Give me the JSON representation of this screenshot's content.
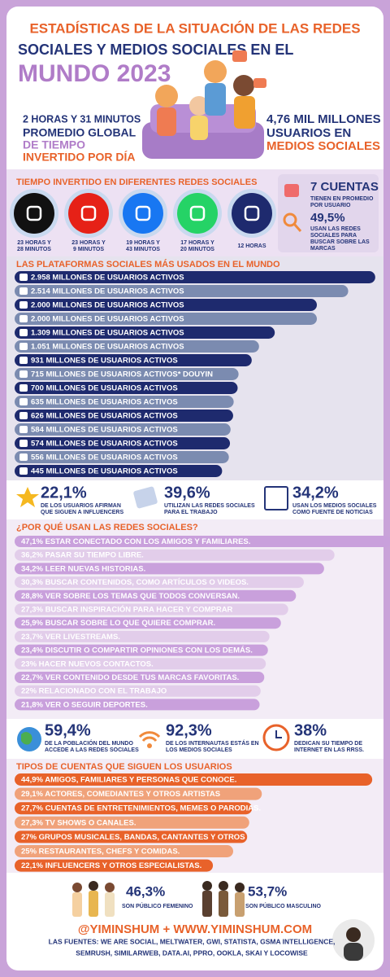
{
  "header": {
    "line1": "ESTADÍSTICAS DE LA SITUACIÓN DE LAS REDES",
    "line2": "SOCIALES Y MEDIOS SOCIALES EN EL",
    "line3": "MUNDO 2023"
  },
  "highlights": {
    "time": "2 HORAS Y 31 MINUTOS",
    "time_label": [
      "PROMEDIO GLOBAL",
      "DE TIEMPO",
      "INVERTIDO POR DÍA"
    ],
    "users": "4,76 MIL MILLONES",
    "users_label": [
      "USUARIOS EN",
      "MEDIOS SOCIALES"
    ]
  },
  "time_spent": {
    "title": "TIEMPO INVERTIDO EN DIFERENTES REDES SOCIALES",
    "items": [
      [
        "23 HORAS Y",
        "28 MINUTOS"
      ],
      [
        "23 HORAS Y",
        "9 MINUTOS"
      ],
      [
        "19 HORAS Y",
        "43 MINUTOS"
      ],
      [
        "17 HORAS Y",
        "20 MINUTOS"
      ],
      [
        "12 HORAS"
      ]
    ]
  },
  "side_stats": [
    {
      "value": "7 CUENTAS",
      "label": [
        "TIENEN EN PROMEDIO",
        "POR USUARIO"
      ]
    },
    {
      "value": "49,5%",
      "label": [
        "USAN LAS REDES",
        "SOCIALES PARA",
        "BUSCAR SOBRE LAS",
        "MARCAS"
      ]
    }
  ],
  "platforms": {
    "title": "LAS PLATAFORMAS SOCIALES MÁS USADOS EN EL MUNDO",
    "values": [
      2958,
      2514,
      2000,
      2000,
      1309,
      1051,
      931,
      715,
      700,
      635,
      626,
      584,
      574,
      556,
      445
    ],
    "value_labels": [
      "2.958 MILLONES DE USUARIOS ACTIVOS",
      "2.514 MILLONES DE USUARIOS ACTIVOS",
      "2.000 MILLONES DE USUARIOS ACTIVOS",
      "2.000 MILLONES DE USUARIOS ACTIVOS",
      "1.309 MILLONES DE USUARIOS ACTIVOS",
      "1.051 MILLONES DE USUARIOS ACTIVOS",
      "931 MILLONES DE USUARIOS ACTIVOS",
      "715 MILLONES DE USUARIOS ACTIVOS* DOUYIN",
      "700 MILLONES DE USUARIOS ACTIVOS",
      "635 MILLONES DE USUARIOS ACTIVOS",
      "626 MILLONES DE USUARIOS ACTIVOS",
      "584 MILLONES DE USUARIOS ACTIVOS",
      "574 MILLONES DE USUARIOS ACTIVOS",
      "556 MILLONES DE USUARIOS ACTIVOS",
      "445 MILLONES DE USUARIOS ACTIVOS"
    ]
  },
  "stats_row1": [
    {
      "value": "22,1%",
      "label": [
        "DE LOS USUARIOS AFIRMAN",
        "QUE SIGUEN A INFLUENCERS"
      ]
    },
    {
      "value": "39,6%",
      "label": [
        "UTILIZAN LAS REDES SOCIALES",
        "PARA EL TRABAJO"
      ]
    },
    {
      "value": "34,2%",
      "label": [
        "USAN LOS MEDIOS SOCIALES",
        "COMO FUENTE DE NOTICIAS"
      ]
    }
  ],
  "reasons": {
    "title": "¿POR QUÉ USAN LAS REDES SOCIALES?",
    "values": [
      47.1,
      36.2,
      34.2,
      30.3,
      28.8,
      27.3,
      25.9,
      23.7,
      23.4,
      23,
      22.7,
      22,
      21.8
    ],
    "value_labels": [
      "47,1% ESTAR CONECTADO CON LOS AMIGOS Y FAMILIARES.",
      "36,2% PASAR SU TIEMPO LIBRE.",
      "34,2% LEER NUEVAS HISTORIAS.",
      "30,3% BUSCAR CONTENIDOS, COMO ARTÍCULOS O VIDEOS.",
      "28,8% VER SOBRE LOS TEMAS QUE TODOS CONVERSAN.",
      "27,3% BUSCAR INSPIRACIÓN PARA HACER Y COMPRAR",
      "25,9% BUSCAR SOBRE LO QUE QUIERE COMPRAR.",
      "23,7% VER LIVESTREAMS.",
      "23,4% DISCUTIR O COMPARTIR OPINIONES CON LOS DEMÁS.",
      "23% HACER NUEVOS CONTACTOS.",
      "22,7% VER CONTENIDO DESDE TUS MARCAS FAVORITAS.",
      "22% RELACIONADO CON EL TRABAJO",
      "21,8% VER O SEGUIR DEPORTES."
    ]
  },
  "stats_row2": [
    {
      "value": "59,4%",
      "label": [
        "DE LA POBLACIÓN DEL MUNDO",
        "ACCEDE A LAS REDES SOCIALES"
      ]
    },
    {
      "value": "92,3%",
      "label": [
        "DE LOS INTERNAUTAS ESTÁS EN",
        "LOS MEDIOS SOCIALES"
      ]
    },
    {
      "value": "38%",
      "label": [
        "DEDICAN SU TIEMPO DE",
        "INTERNET EN LAS RRSS."
      ]
    }
  ],
  "accounts": {
    "title": "TIPOS DE CUENTAS QUE SIGUEN LOS USUARIOS",
    "values": [
      44.9,
      29.1,
      27.7,
      27.3,
      27,
      25,
      22.1
    ],
    "value_labels": [
      "44,9% AMIGOS, FAMILIARES Y PERSONAS QUE CONOCE.",
      "29,1% ACTORES, COMEDIANTES Y OTROS ARTISTAS",
      "27,7% CUENTAS DE ENTRETENIMIENTOS, MEMES O PARODIAS.",
      "27,3% TV SHOWS O CANALES.",
      "27% GRUPOS MUSICALES, BANDAS, CANTANTES Y OTROS",
      "25% RESTAURANTES, CHEFS Y COMIDAS.",
      "22,1% INFLUENCERS Y OTROS ESPECIALISTAS."
    ]
  },
  "footer": {
    "female": {
      "value": "46,3%",
      "label": "SON PÚBLICO FEMENINO"
    },
    "male": {
      "value": "53,7%",
      "label": "SON PÚBLICO MASCULINO"
    },
    "handle": "@YIMINSHUM + WWW.YIMINSHUM.COM",
    "sources": [
      "LAS FUENTES: WE ARE SOCIAL, MELTWATER, GWI, STATISTA, GSMA INTELLIGENCE,",
      "SEMRUSH, SIMILARWEB, DATA.AI, PPRO, OOKLA, SKAI Y LOCOWISE"
    ]
  }
}
